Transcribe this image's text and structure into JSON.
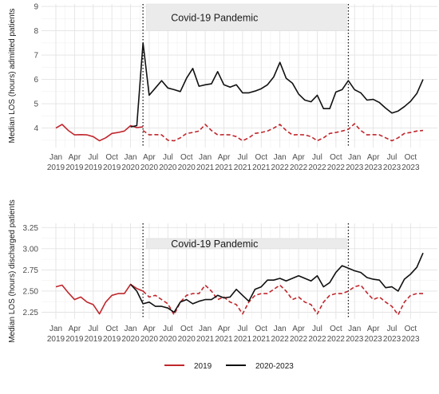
{
  "chart_data": [
    {
      "type": "line",
      "ylabel": "Median LOS (hours) admitted patients",
      "yticks": [
        4,
        5,
        6,
        7,
        8,
        9
      ],
      "ylim": [
        3.2,
        9.1
      ],
      "xlim": [
        "2019-01",
        "2023-12"
      ],
      "xticks": [
        {
          "date": "2019-01",
          "month": "Jan",
          "year": "2019"
        },
        {
          "date": "2019-04",
          "month": "Apr",
          "year": "2019"
        },
        {
          "date": "2019-07",
          "month": "Jul",
          "year": "2019"
        },
        {
          "date": "2019-10",
          "month": "Oct",
          "year": "2019"
        },
        {
          "date": "2020-01",
          "month": "Jan",
          "year": "2020"
        },
        {
          "date": "2020-04",
          "month": "Apr",
          "year": "2020"
        },
        {
          "date": "2020-07",
          "month": "Jul",
          "year": "2020"
        },
        {
          "date": "2020-10",
          "month": "Oct",
          "year": "2020"
        },
        {
          "date": "2021-01",
          "month": "Jan",
          "year": "2021"
        },
        {
          "date": "2021-04",
          "month": "Apr",
          "year": "2021"
        },
        {
          "date": "2021-07",
          "month": "Jul",
          "year": "2021"
        },
        {
          "date": "2021-10",
          "month": "Oct",
          "year": "2021"
        },
        {
          "date": "2022-01",
          "month": "Jan",
          "year": "2022"
        },
        {
          "date": "2022-04",
          "month": "Apr",
          "year": "2022"
        },
        {
          "date": "2022-07",
          "month": "Jul",
          "year": "2022"
        },
        {
          "date": "2022-10",
          "month": "Oct",
          "year": "2022"
        },
        {
          "date": "2023-01",
          "month": "Jan",
          "year": "2023"
        },
        {
          "date": "2023-04",
          "month": "Apr",
          "year": "2023"
        },
        {
          "date": "2023-07",
          "month": "Jul",
          "year": "2023"
        },
        {
          "date": "2023-10",
          "month": "Oct",
          "year": "2023"
        }
      ],
      "grid": true,
      "annotation": {
        "text": "Covid-19 Pandemic",
        "start": "2020-03",
        "end": "2022-12",
        "ymin": 8.0,
        "ymax": 9.1
      },
      "vlines": [
        "2020-03",
        "2022-12"
      ],
      "series": [
        {
          "name": "2019",
          "color": "#c0272d",
          "style": "solid",
          "x": [
            "2019-01",
            "2019-02",
            "2019-03",
            "2019-04",
            "2019-05",
            "2019-06",
            "2019-07",
            "2019-08",
            "2019-09",
            "2019-10",
            "2019-11",
            "2019-12",
            "2020-01",
            "2020-02",
            "2020-03"
          ],
          "y": [
            4.0,
            4.15,
            3.9,
            3.72,
            3.73,
            3.72,
            3.65,
            3.48,
            3.6,
            3.78,
            3.82,
            3.88,
            4.1,
            4.02,
            4.05
          ]
        },
        {
          "name": "",
          "color": "#c0272d",
          "style": "dashed",
          "x": [
            "2020-03",
            "2020-04",
            "2020-05",
            "2020-06",
            "2020-07",
            "2020-08",
            "2020-09",
            "2020-10",
            "2020-11",
            "2020-12",
            "2021-01",
            "2021-02",
            "2021-03",
            "2021-04",
            "2021-05",
            "2021-06",
            "2021-07",
            "2021-08",
            "2021-09",
            "2021-10",
            "2021-11",
            "2021-12",
            "2022-01",
            "2022-02",
            "2022-03",
            "2022-04",
            "2022-05",
            "2022-06",
            "2022-07",
            "2022-08",
            "2022-09",
            "2022-10",
            "2022-11",
            "2022-12",
            "2023-01",
            "2023-02",
            "2023-03",
            "2023-04",
            "2023-05",
            "2023-06",
            "2023-07",
            "2023-08",
            "2023-09",
            "2023-10",
            "2023-11",
            "2023-12"
          ],
          "y": [
            3.9,
            3.72,
            3.73,
            3.72,
            3.5,
            3.48,
            3.6,
            3.78,
            3.82,
            3.88,
            4.15,
            3.9,
            3.72,
            3.73,
            3.72,
            3.65,
            3.48,
            3.6,
            3.78,
            3.82,
            3.88,
            4.0,
            4.15,
            3.9,
            3.72,
            3.73,
            3.72,
            3.65,
            3.48,
            3.6,
            3.78,
            3.82,
            3.88,
            3.95,
            4.18,
            3.9,
            3.72,
            3.73,
            3.72,
            3.6,
            3.48,
            3.6,
            3.78,
            3.82,
            3.88,
            3.9
          ]
        },
        {
          "name": "2020-2023",
          "color": "#111111",
          "style": "solid",
          "x": [
            "2020-01",
            "2020-02",
            "2020-03",
            "2020-04",
            "2020-05",
            "2020-06",
            "2020-07",
            "2020-08",
            "2020-09",
            "2020-10",
            "2020-11",
            "2020-12",
            "2021-01",
            "2021-02",
            "2021-03",
            "2021-04",
            "2021-05",
            "2021-06",
            "2021-07",
            "2021-08",
            "2021-09",
            "2021-10",
            "2021-11",
            "2021-12",
            "2022-01",
            "2022-02",
            "2022-03",
            "2022-04",
            "2022-05",
            "2022-06",
            "2022-07",
            "2022-08",
            "2022-09",
            "2022-10",
            "2022-11",
            "2022-12",
            "2023-01",
            "2023-02",
            "2023-03",
            "2023-04",
            "2023-05",
            "2023-06",
            "2023-07",
            "2023-08",
            "2023-09",
            "2023-10",
            "2023-11",
            "2023-12"
          ],
          "y": [
            4.05,
            4.1,
            7.5,
            5.35,
            5.65,
            5.95,
            5.65,
            5.58,
            5.5,
            6.05,
            6.45,
            5.72,
            5.78,
            5.82,
            6.32,
            5.78,
            5.68,
            5.78,
            5.45,
            5.45,
            5.52,
            5.62,
            5.78,
            6.1,
            6.7,
            6.05,
            5.85,
            5.4,
            5.15,
            5.08,
            5.35,
            4.8,
            4.8,
            5.48,
            5.58,
            5.95,
            5.58,
            5.45,
            5.15,
            5.18,
            5.05,
            4.82,
            4.62,
            4.7,
            4.88,
            5.1,
            5.42,
            6.0
          ]
        }
      ]
    },
    {
      "type": "line",
      "ylabel": "Median LOS (hours) discharged patients",
      "yticks": [
        "2.25",
        "2.50",
        "2.75",
        "3.00",
        "3.25"
      ],
      "ylim": [
        2.17,
        3.3
      ],
      "xlim": [
        "2019-01",
        "2023-12"
      ],
      "xticks": [
        {
          "date": "2019-01",
          "month": "Jan",
          "year": "2019"
        },
        {
          "date": "2019-04",
          "month": "Apr",
          "year": "2019"
        },
        {
          "date": "2019-07",
          "month": "Jul",
          "year": "2019"
        },
        {
          "date": "2019-10",
          "month": "Oct",
          "year": "2019"
        },
        {
          "date": "2020-01",
          "month": "Jan",
          "year": "2020"
        },
        {
          "date": "2020-04",
          "month": "Apr",
          "year": "2020"
        },
        {
          "date": "2020-07",
          "month": "Jul",
          "year": "2020"
        },
        {
          "date": "2020-10",
          "month": "Oct",
          "year": "2020"
        },
        {
          "date": "2021-01",
          "month": "Jan",
          "year": "2021"
        },
        {
          "date": "2021-04",
          "month": "Apr",
          "year": "2021"
        },
        {
          "date": "2021-07",
          "month": "Jul",
          "year": "2021"
        },
        {
          "date": "2021-10",
          "month": "Oct",
          "year": "2021"
        },
        {
          "date": "2022-01",
          "month": "Jan",
          "year": "2022"
        },
        {
          "date": "2022-04",
          "month": "Apr",
          "year": "2022"
        },
        {
          "date": "2022-07",
          "month": "Jul",
          "year": "2022"
        },
        {
          "date": "2022-10",
          "month": "Oct",
          "year": "2022"
        },
        {
          "date": "2023-01",
          "month": "Jan",
          "year": "2023"
        },
        {
          "date": "2023-04",
          "month": "Apr",
          "year": "2023"
        },
        {
          "date": "2023-07",
          "month": "Jul",
          "year": "2023"
        },
        {
          "date": "2023-10",
          "month": "Oct",
          "year": "2023"
        }
      ],
      "grid": true,
      "annotation": {
        "text": "Covid-19 Pandemic",
        "start": "2020-03",
        "end": "2022-12",
        "ymin": 3.0,
        "ymax": 3.12
      },
      "vlines": [
        "2020-03",
        "2022-12"
      ],
      "series": [
        {
          "name": "2019",
          "color": "#c0272d",
          "style": "solid",
          "x": [
            "2019-01",
            "2019-02",
            "2019-03",
            "2019-04",
            "2019-05",
            "2019-06",
            "2019-07",
            "2019-08",
            "2019-09",
            "2019-10",
            "2019-11",
            "2019-12",
            "2020-01",
            "2020-02",
            "2020-03"
          ],
          "y": [
            2.55,
            2.57,
            2.48,
            2.4,
            2.43,
            2.37,
            2.34,
            2.23,
            2.37,
            2.45,
            2.47,
            2.47,
            2.58,
            2.53,
            2.5
          ]
        },
        {
          "name": "",
          "color": "#c0272d",
          "style": "dashed",
          "x": [
            "2020-03",
            "2020-04",
            "2020-05",
            "2020-06",
            "2020-07",
            "2020-08",
            "2020-09",
            "2020-10",
            "2020-11",
            "2020-12",
            "2021-01",
            "2021-02",
            "2021-03",
            "2021-04",
            "2021-05",
            "2021-06",
            "2021-07",
            "2021-08",
            "2021-09",
            "2021-10",
            "2021-11",
            "2021-12",
            "2022-01",
            "2022-02",
            "2022-03",
            "2022-04",
            "2022-05",
            "2022-06",
            "2022-07",
            "2022-08",
            "2022-09",
            "2022-10",
            "2022-11",
            "2022-12",
            "2023-01",
            "2023-02",
            "2023-03",
            "2023-04",
            "2023-05",
            "2023-06",
            "2023-07",
            "2023-08",
            "2023-09",
            "2023-10",
            "2023-11",
            "2023-12"
          ],
          "y": [
            2.5,
            2.43,
            2.45,
            2.4,
            2.35,
            2.22,
            2.37,
            2.45,
            2.47,
            2.47,
            2.57,
            2.5,
            2.4,
            2.43,
            2.37,
            2.34,
            2.23,
            2.37,
            2.45,
            2.47,
            2.47,
            2.52,
            2.57,
            2.5,
            2.4,
            2.43,
            2.37,
            2.34,
            2.23,
            2.37,
            2.45,
            2.47,
            2.47,
            2.5,
            2.55,
            2.57,
            2.48,
            2.4,
            2.43,
            2.37,
            2.32,
            2.22,
            2.37,
            2.45,
            2.47,
            2.47
          ]
        },
        {
          "name": "2020-2023",
          "color": "#111111",
          "style": "solid",
          "x": [
            "2020-01",
            "2020-02",
            "2020-03",
            "2020-04",
            "2020-05",
            "2020-06",
            "2020-07",
            "2020-08",
            "2020-09",
            "2020-10",
            "2020-11",
            "2020-12",
            "2021-01",
            "2021-02",
            "2021-03",
            "2021-04",
            "2021-05",
            "2021-06",
            "2021-07",
            "2021-08",
            "2021-09",
            "2021-10",
            "2021-11",
            "2021-12",
            "2022-01",
            "2022-02",
            "2022-03",
            "2022-04",
            "2022-05",
            "2022-06",
            "2022-07",
            "2022-08",
            "2022-09",
            "2022-10",
            "2022-11",
            "2022-12",
            "2023-01",
            "2023-02",
            "2023-03",
            "2023-04",
            "2023-05",
            "2023-06",
            "2023-07",
            "2023-08",
            "2023-09",
            "2023-10",
            "2023-11",
            "2023-12"
          ],
          "y": [
            2.58,
            2.5,
            2.35,
            2.37,
            2.32,
            2.32,
            2.3,
            2.25,
            2.37,
            2.4,
            2.35,
            2.38,
            2.4,
            2.4,
            2.45,
            2.42,
            2.43,
            2.52,
            2.45,
            2.38,
            2.52,
            2.55,
            2.63,
            2.63,
            2.65,
            2.62,
            2.65,
            2.68,
            2.65,
            2.62,
            2.68,
            2.55,
            2.6,
            2.72,
            2.8,
            2.77,
            2.74,
            2.72,
            2.66,
            2.64,
            2.63,
            2.54,
            2.55,
            2.5,
            2.64,
            2.7,
            2.78,
            2.95
          ]
        }
      ]
    }
  ],
  "legend": {
    "placement": "bottom",
    "items": [
      {
        "label": "2019",
        "color": "#c0272d"
      },
      {
        "label": "2020-2023",
        "color": "#111111"
      }
    ]
  }
}
